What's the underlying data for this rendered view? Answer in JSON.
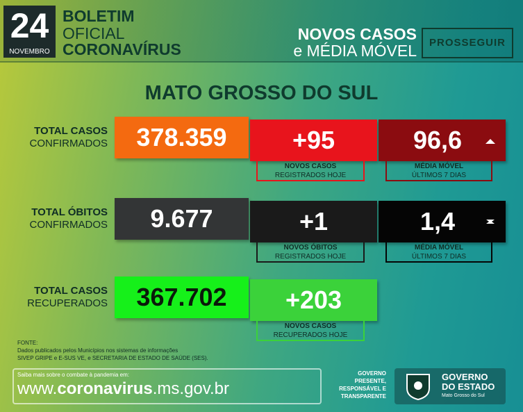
{
  "header": {
    "day": "24",
    "month": "NOVEMBRO",
    "title_lines": [
      "BOLETIM",
      "OFICIAL",
      "CORONAVÍRUS"
    ],
    "subtitle_lines": [
      "NOVOS CASOS",
      "e MÉDIA MÓVEL"
    ],
    "brand": "PROSSEGUIR"
  },
  "region": "MATO GROSSO DO SUL",
  "rows": [
    {
      "label_lines": [
        "TOTAL CASOS",
        "CONFIRMADOS"
      ],
      "total": "378.359",
      "new": "+95",
      "new_caption": [
        "NOVOS CASOS",
        "REGISTRADOS HOJE"
      ],
      "avg": "96,6",
      "avg_caption": [
        "MÉDIA MÓVEL",
        "ÚLTIMOS 7 DIAS"
      ]
    },
    {
      "label_lines": [
        "TOTAL ÓBITOS",
        "CONFIRMADOS"
      ],
      "total": "9.677",
      "new": "+1",
      "new_caption": [
        "NOVOS ÓBITOS",
        "REGISTRADOS HOJE"
      ],
      "avg": "1,4",
      "avg_caption": [
        "MÉDIA MÓVEL",
        "ÚLTIMOS 7 DIAS"
      ]
    },
    {
      "label_lines": [
        "TOTAL CASOS",
        "RECUPERADOS"
      ],
      "total": "367.702",
      "new": "+203",
      "new_caption": [
        "NOVOS CASOS",
        "RECUPERADOS HOJE"
      ]
    }
  ],
  "source": {
    "heading": "FONTE:",
    "lines": [
      "Dados publicados pelos Municípios nos sistemas de informações",
      "SIVEP GRIPE e E-SUS VE, e SECRETARIA DE ESTADO DE SAÚDE (SES)."
    ]
  },
  "footer": {
    "note": "Saiba mais sobre o combate à pandemia em:",
    "url_prefix": "www.",
    "url_main": "coronavirus",
    "url_suffix": ".ms.gov.br",
    "motto": [
      "GOVERNO",
      "PRESENTE,",
      "RESPONSÁVEL E",
      "TRANSPARENTE"
    ],
    "gov": [
      "GOVERNO",
      "DO ESTADO"
    ],
    "gov_sub": "Mato Grosso do Sul"
  }
}
